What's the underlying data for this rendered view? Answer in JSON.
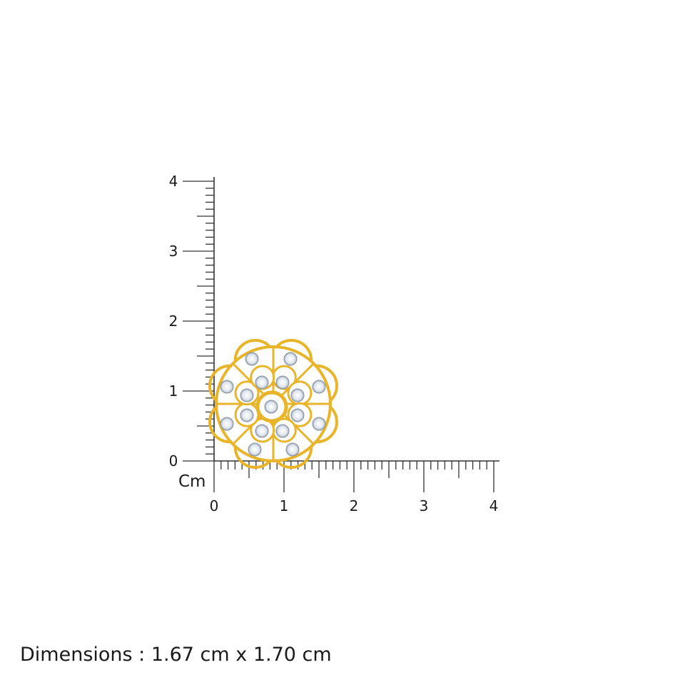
{
  "ruler": {
    "unit": "Cm",
    "x_labels": [
      "0",
      "1",
      "2",
      "3",
      "4"
    ],
    "y_labels": [
      "0",
      "1",
      "2",
      "3",
      "4"
    ]
  },
  "product": {
    "name": "flower-diamond-stud-earring",
    "metal_color": "#e8b52a",
    "stone_color": "#dfe6ee"
  },
  "dimensions_text": "Dimensions : 1.67 cm x 1.70 cm"
}
